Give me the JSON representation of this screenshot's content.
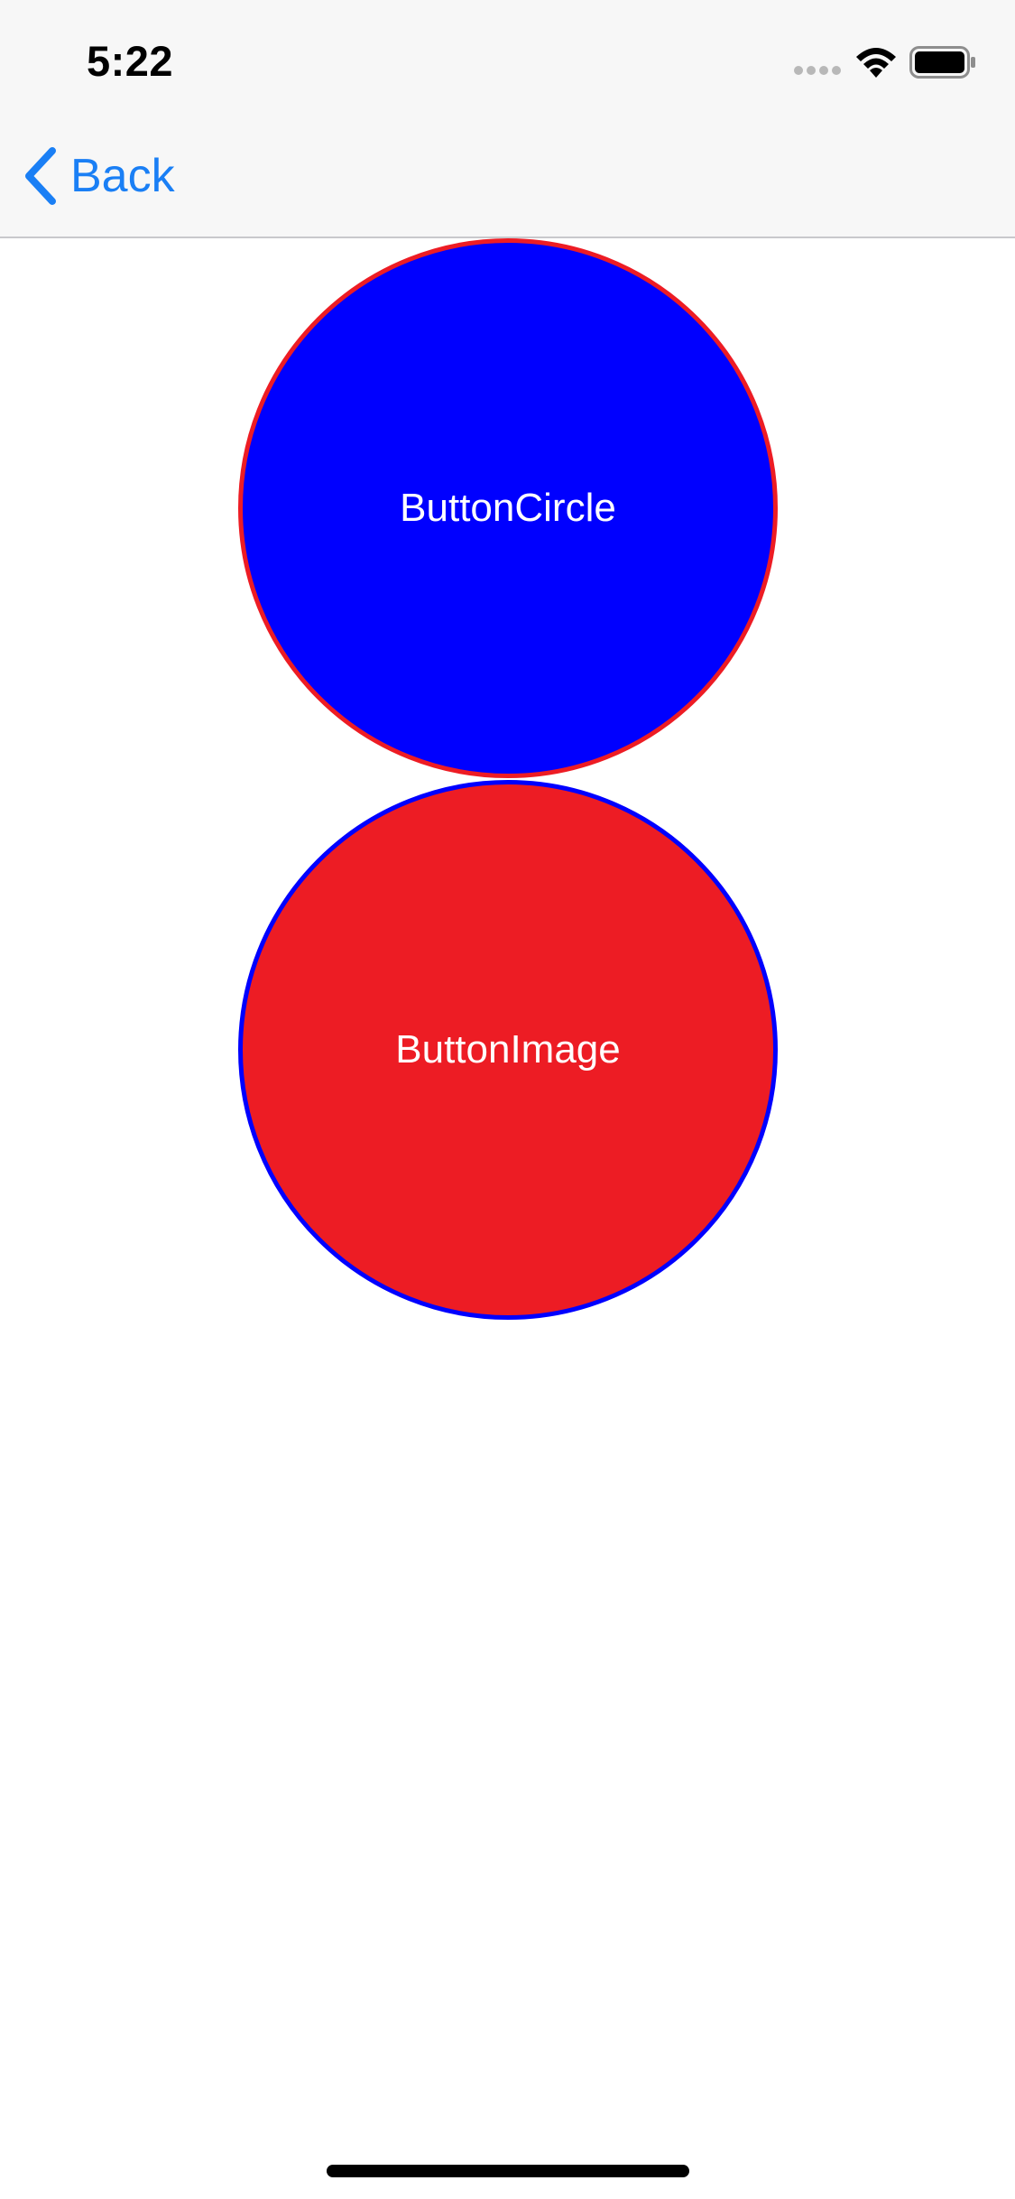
{
  "status_bar": {
    "time": "5:22",
    "icons": [
      "signal-dots-icon",
      "wifi-icon",
      "battery-icon"
    ]
  },
  "nav_bar": {
    "back_label": "Back",
    "back_icon": "chevron-left-icon",
    "tint_color": "#1a7ff5"
  },
  "buttons": [
    {
      "label": "ButtonCircle",
      "fill_color": "#0000ff",
      "border_color": "#ed1c24"
    },
    {
      "label": "ButtonImage",
      "fill_color": "#ed1c24",
      "border_color": "#0000ff"
    }
  ]
}
